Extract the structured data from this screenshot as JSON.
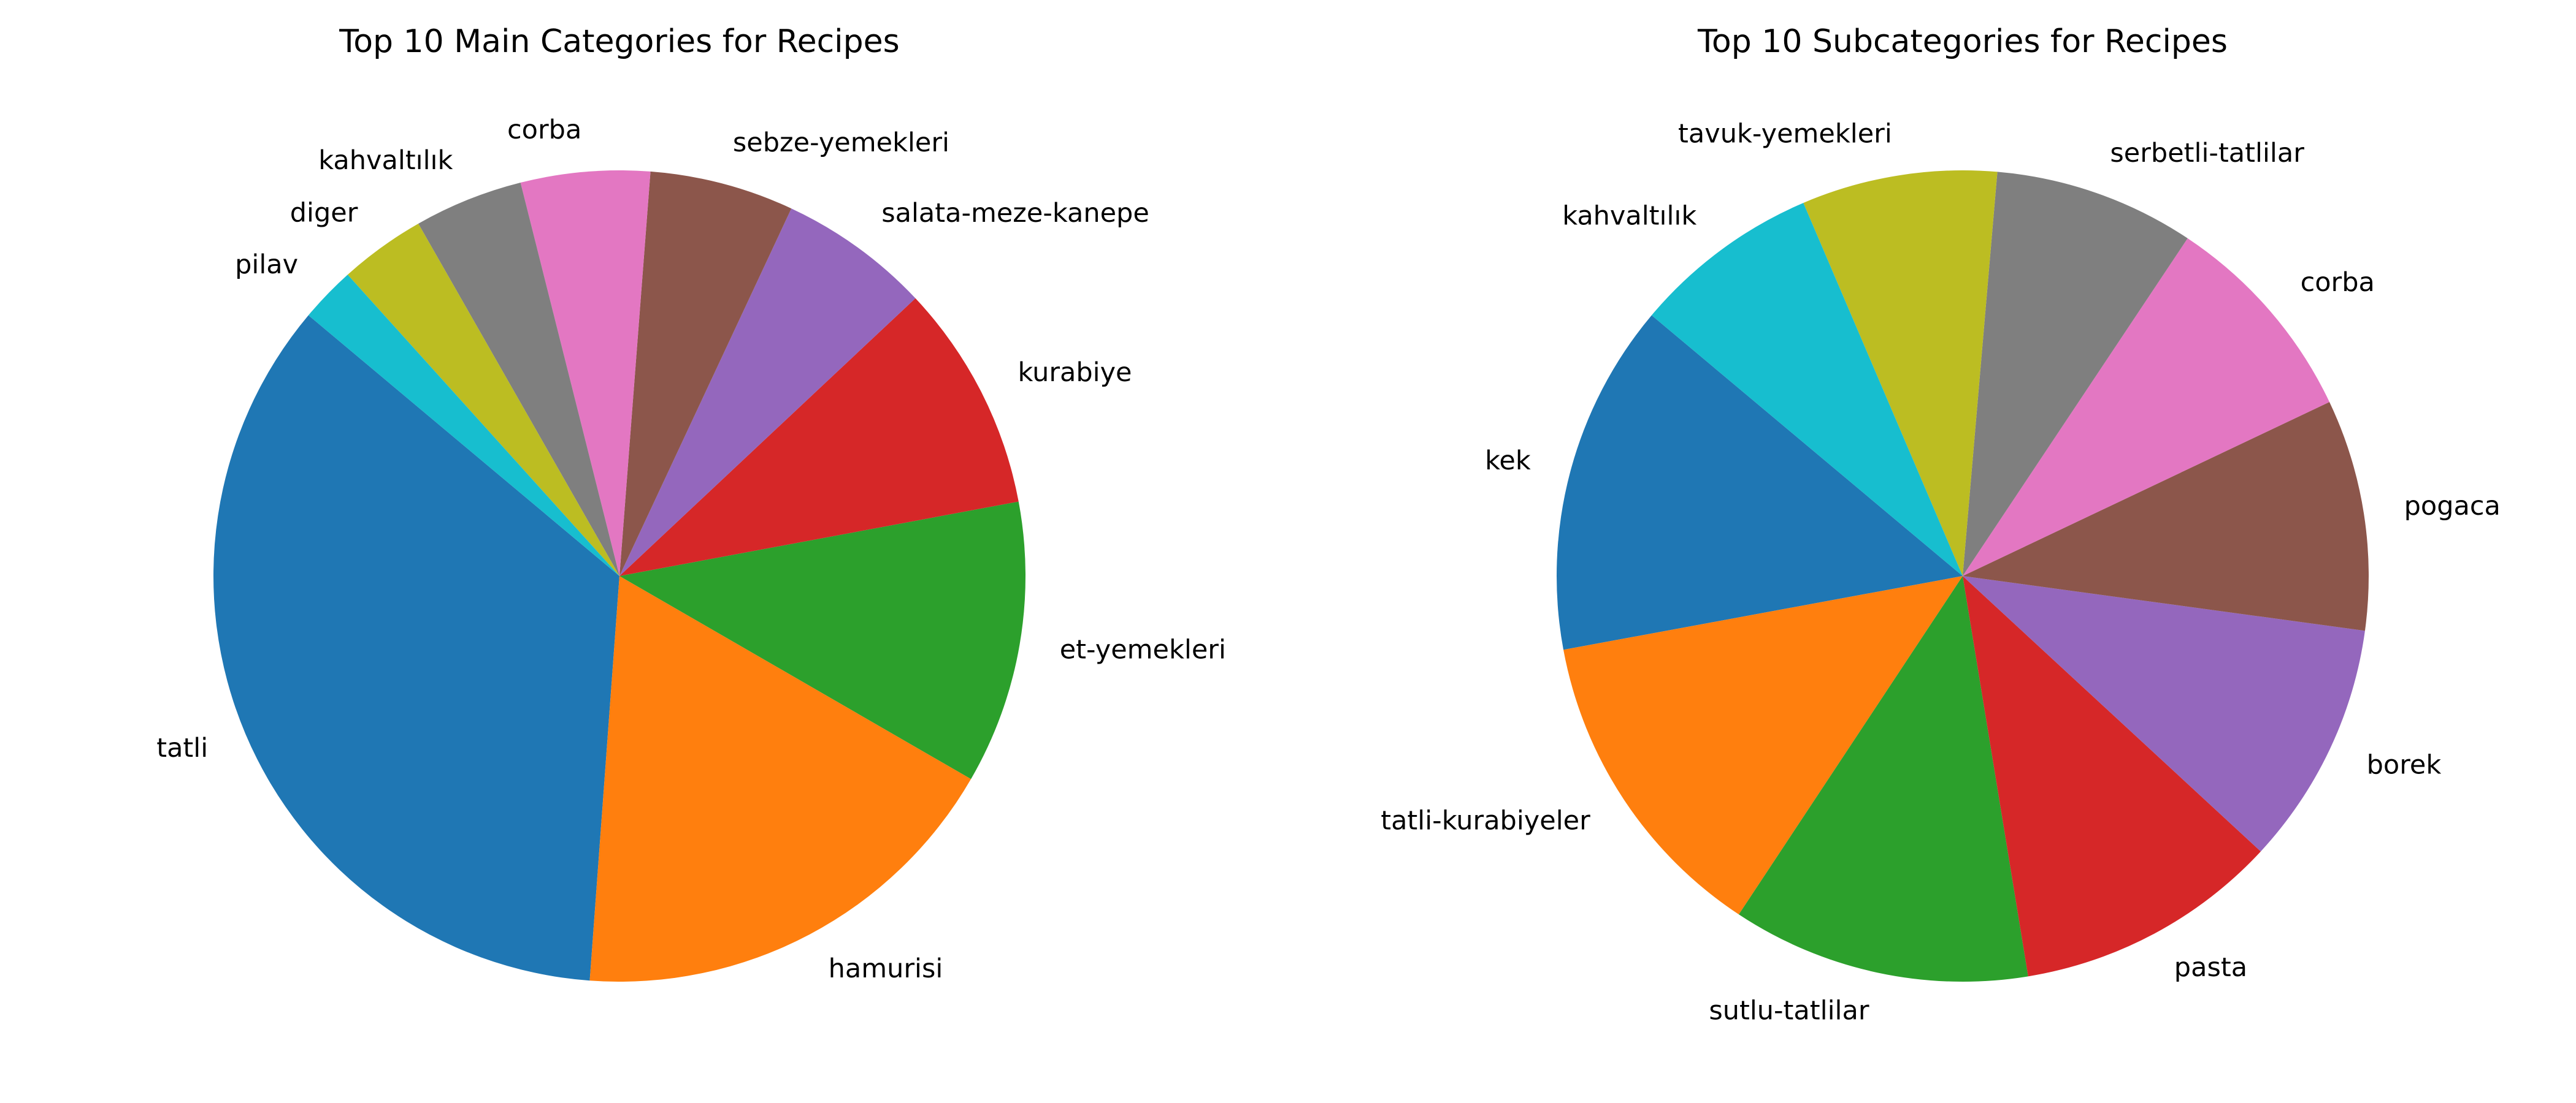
{
  "chart_data": [
    {
      "type": "pie",
      "title": "Top 10 Main Categories for Recipes",
      "start_angle_deg": 140,
      "direction": "counterclockwise",
      "categories": [
        "tatli",
        "hamurisi",
        "et-yemekleri",
        "kurabiye",
        "salata-meze-kanepe",
        "sebze-yemekleri",
        "corba",
        "kahvaltılık",
        "diger",
        "pilav"
      ],
      "values": [
        34.7,
        17.7,
        11.2,
        9.0,
        6.0,
        5.7,
        5.1,
        4.3,
        3.4,
        2.2
      ],
      "colors": [
        "#1f77b4",
        "#ff7f0e",
        "#2ca02c",
        "#d62728",
        "#9467bd",
        "#8c564b",
        "#e377c2",
        "#7f7f7f",
        "#bcbd22",
        "#17becf"
      ]
    },
    {
      "type": "pie",
      "title": "Top 10 Subcategories for Recipes",
      "start_angle_deg": 140,
      "direction": "counterclockwise",
      "categories": [
        "kek",
        "tatli-kurabiyeler",
        "sutlu-tatlilar",
        "pasta",
        "borek",
        "pogaca",
        "corba",
        "serbetli-tatlilar",
        "tavuk-yemekleri",
        "kahvaltılık"
      ],
      "values": [
        13.7,
        12.5,
        11.6,
        10.3,
        9.5,
        9.0,
        8.4,
        7.8,
        7.6,
        7.3
      ],
      "colors": [
        "#1f77b4",
        "#ff7f0e",
        "#2ca02c",
        "#d62728",
        "#9467bd",
        "#8c564b",
        "#e377c2",
        "#7f7f7f",
        "#bcbd22",
        "#17becf"
      ]
    }
  ]
}
